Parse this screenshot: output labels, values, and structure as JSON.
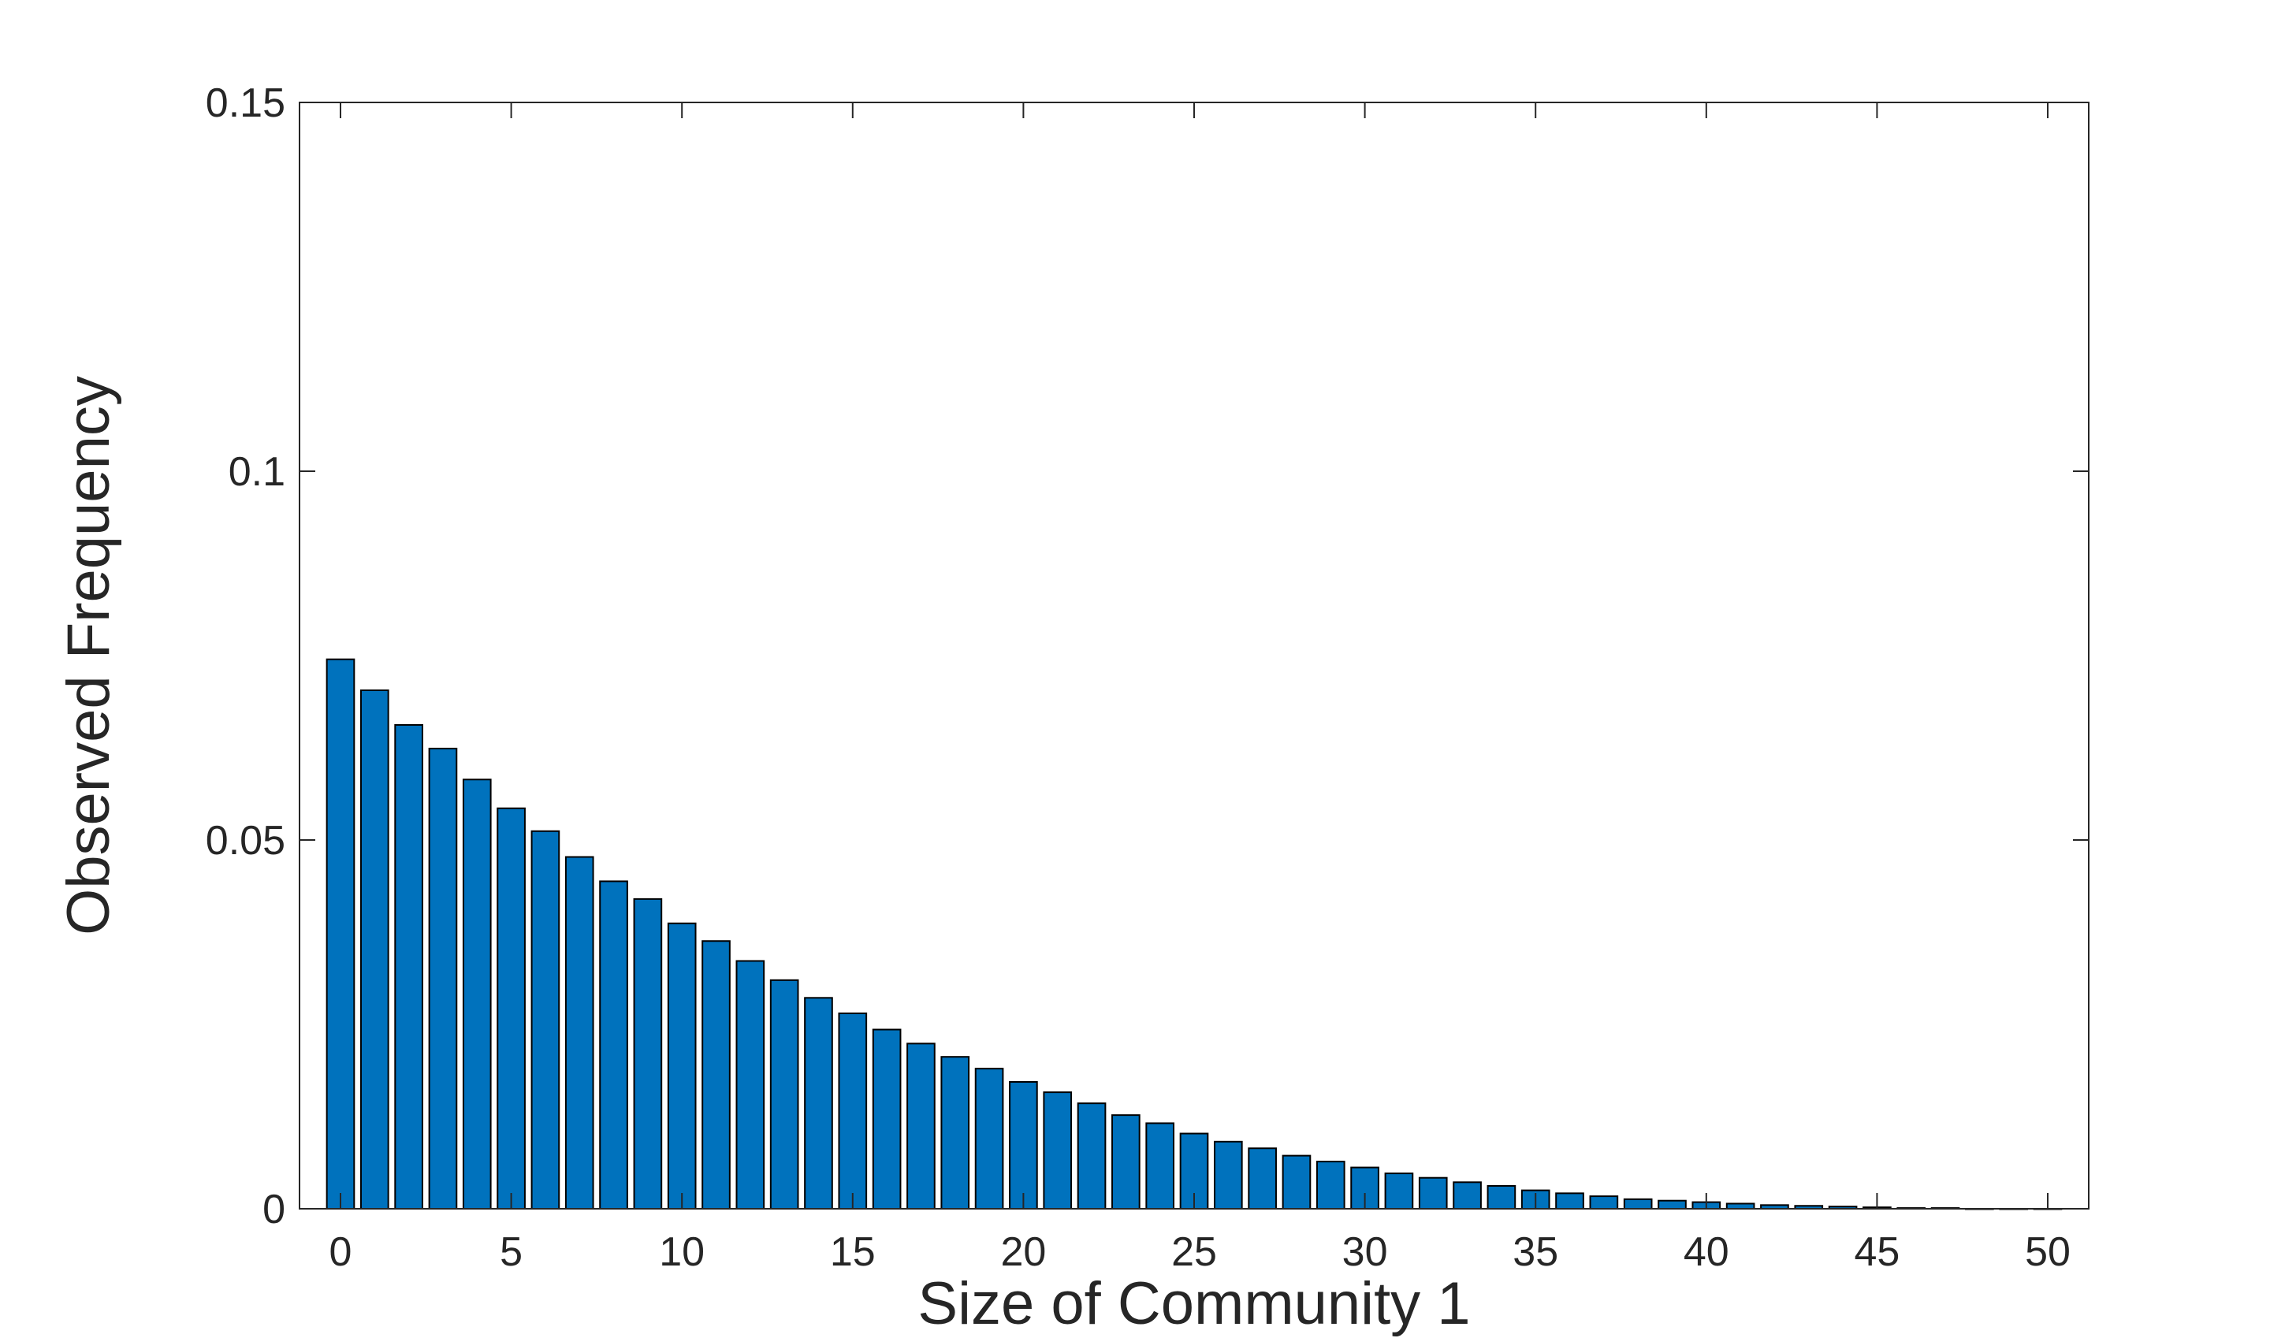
{
  "chart_data": {
    "type": "bar",
    "title": "",
    "xlabel": "Size of Community 1",
    "ylabel": "Observed Frequency",
    "xlim": [
      -1.2,
      51.2
    ],
    "ylim": [
      0,
      0.15
    ],
    "x_ticks": [
      0,
      5,
      10,
      15,
      20,
      25,
      30,
      35,
      40,
      45,
      50
    ],
    "x_tick_labels": [
      "0",
      "5",
      "10",
      "15",
      "20",
      "25",
      "30",
      "35",
      "40",
      "45",
      "50"
    ],
    "y_ticks": [
      0,
      0.05,
      0.1,
      0.15
    ],
    "y_tick_labels": [
      "0",
      "0.05",
      "0.1",
      "0.15"
    ],
    "grid": false,
    "bar_color": "#0072BD",
    "x": [
      0,
      1,
      2,
      3,
      4,
      5,
      6,
      7,
      8,
      9,
      10,
      11,
      12,
      13,
      14,
      15,
      16,
      17,
      18,
      19,
      20,
      21,
      22,
      23,
      24,
      25,
      26,
      27,
      28,
      29,
      30,
      31,
      32,
      33,
      34,
      35,
      36,
      37,
      38,
      39,
      40,
      41,
      42,
      43,
      44,
      45,
      46,
      47,
      48,
      49,
      50
    ],
    "values": [
      0.0745,
      0.0703,
      0.0656,
      0.0624,
      0.0582,
      0.0543,
      0.0512,
      0.0477,
      0.0444,
      0.042,
      0.0387,
      0.0363,
      0.0336,
      0.031,
      0.0286,
      0.0265,
      0.0243,
      0.0224,
      0.0206,
      0.019,
      0.0172,
      0.0158,
      0.0143,
      0.0127,
      0.0116,
      0.0102,
      0.0091,
      0.0082,
      0.0072,
      0.0064,
      0.0056,
      0.0048,
      0.0042,
      0.0036,
      0.0031,
      0.0025,
      0.0021,
      0.0017,
      0.0013,
      0.0011,
      0.0009,
      0.0007,
      0.0005,
      0.0004,
      0.0003,
      0.0002,
      0.0001,
      0.0001,
      0.0,
      0.0,
      0.0
    ]
  }
}
